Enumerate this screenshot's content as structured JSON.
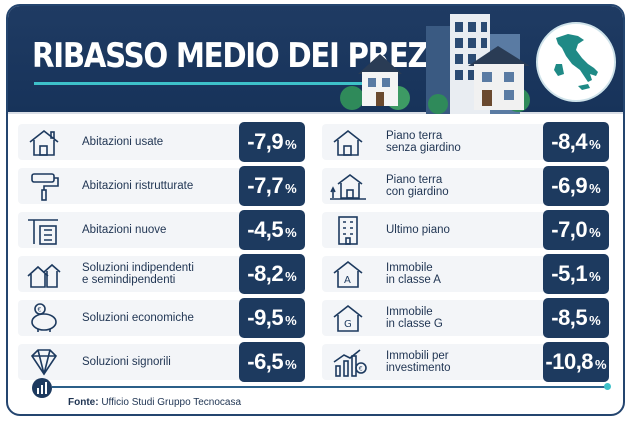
{
  "header": {
    "title": "RIBASSO MEDIO DEI PREZZI"
  },
  "left_items": [
    {
      "label": "Abitazioni usate",
      "value": "-7,9",
      "unit": "%",
      "icon": "house-icon"
    },
    {
      "label": "Abitazioni ristrutturate",
      "value": "-7,7",
      "unit": "%",
      "icon": "paint-roller-icon"
    },
    {
      "label": "Abitazioni nuove",
      "value": "-4,5",
      "unit": "%",
      "icon": "building-crane-icon"
    },
    {
      "label": "Soluzioni indipendenti\ne semindipendenti",
      "value": "-8,2",
      "unit": "%",
      "icon": "detached-houses-icon"
    },
    {
      "label": "Soluzioni economiche",
      "value": "-9,5",
      "unit": "%",
      "icon": "piggy-bank-icon"
    },
    {
      "label": "Soluzioni signorili",
      "value": "-6,5",
      "unit": "%",
      "icon": "diamond-icon"
    }
  ],
  "right_items": [
    {
      "label": "Piano terra\nsenza giardino",
      "value": "-8,4",
      "unit": "%",
      "icon": "house-icon"
    },
    {
      "label": "Piano terra\ncon giardino",
      "value": "-6,9",
      "unit": "%",
      "icon": "house-garden-icon"
    },
    {
      "label": "Ultimo piano",
      "value": "-7,0",
      "unit": "%",
      "icon": "apartment-building-icon"
    },
    {
      "label": "Immobile\nin classe A",
      "value": "-5,1",
      "unit": "%",
      "icon": "energy-class-a-icon"
    },
    {
      "label": "Immobile\nin classe G",
      "value": "-8,5",
      "unit": "%",
      "icon": "energy-class-g-icon"
    },
    {
      "label": "Immobili per\ninvestimento",
      "value": "-10,8",
      "unit": "%",
      "icon": "investment-chart-icon"
    }
  ],
  "footer": {
    "source_label": "Fonte:",
    "source_text": " Ufficio Studi Gruppo Tecnocasa"
  },
  "colors": {
    "navy": "#1d3a5f",
    "accent": "#3ec1c9",
    "map_green": "#1f8a86",
    "row_bg": "#f3f5f8"
  }
}
